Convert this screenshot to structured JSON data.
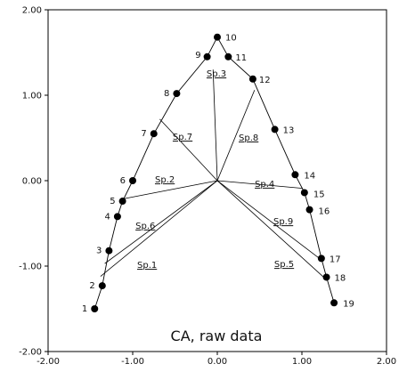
{
  "chart_data": {
    "type": "scatter",
    "title": "CA, raw data",
    "xlabel": "",
    "ylabel": "",
    "xlim": [
      -2.0,
      2.0
    ],
    "ylim": [
      -2.0,
      2.0
    ],
    "x_ticks": [
      -2.0,
      -1.0,
      0.0,
      1.0,
      2.0
    ],
    "y_ticks": [
      -2.0,
      -1.0,
      0.0,
      1.0,
      2.0
    ],
    "x_tick_labels": [
      "-2.00",
      "-1.00",
      "0.00",
      "1.00",
      "2.00"
    ],
    "y_tick_labels": [
      "-2.00",
      "-1.00",
      "0.00",
      "1.00",
      "2.00"
    ],
    "grid": false,
    "sites": [
      {
        "label": "1",
        "x": -1.45,
        "y": -1.5
      },
      {
        "label": "2",
        "x": -1.36,
        "y": -1.23
      },
      {
        "label": "3",
        "x": -1.28,
        "y": -0.82
      },
      {
        "label": "4",
        "x": -1.18,
        "y": -0.42
      },
      {
        "label": "5",
        "x": -1.12,
        "y": -0.24
      },
      {
        "label": "6",
        "x": -1.0,
        "y": 0.0
      },
      {
        "label": "7",
        "x": -0.75,
        "y": 0.55
      },
      {
        "label": "8",
        "x": -0.48,
        "y": 1.02
      },
      {
        "label": "9",
        "x": -0.12,
        "y": 1.45
      },
      {
        "label": "10",
        "x": 0.0,
        "y": 1.68
      },
      {
        "label": "11",
        "x": 0.13,
        "y": 1.45
      },
      {
        "label": "12",
        "x": 0.42,
        "y": 1.19
      },
      {
        "label": "13",
        "x": 0.68,
        "y": 0.6
      },
      {
        "label": "14",
        "x": 0.92,
        "y": 0.07
      },
      {
        "label": "15",
        "x": 1.03,
        "y": -0.14
      },
      {
        "label": "16",
        "x": 1.09,
        "y": -0.34
      },
      {
        "label": "17",
        "x": 1.23,
        "y": -0.91
      },
      {
        "label": "18",
        "x": 1.29,
        "y": -1.13
      },
      {
        "label": "19",
        "x": 1.38,
        "y": -1.43
      }
    ],
    "species": [
      {
        "name": "Sp.1",
        "x": -1.38,
        "y": -1.12
      },
      {
        "name": "Sp.2",
        "x": -1.15,
        "y": -0.22
      },
      {
        "name": "Sp.3",
        "x": -0.05,
        "y": 1.3
      },
      {
        "name": "Sp.4",
        "x": 1.01,
        "y": -0.09
      },
      {
        "name": "Sp.5",
        "x": 1.28,
        "y": -1.15
      },
      {
        "name": "Sp.6",
        "x": -1.33,
        "y": -0.97
      },
      {
        "name": "Sp.7",
        "x": -0.68,
        "y": 0.72
      },
      {
        "name": "Sp.8",
        "x": 0.44,
        "y": 1.06
      },
      {
        "name": "Sp.9",
        "x": 1.22,
        "y": -0.92
      }
    ]
  }
}
